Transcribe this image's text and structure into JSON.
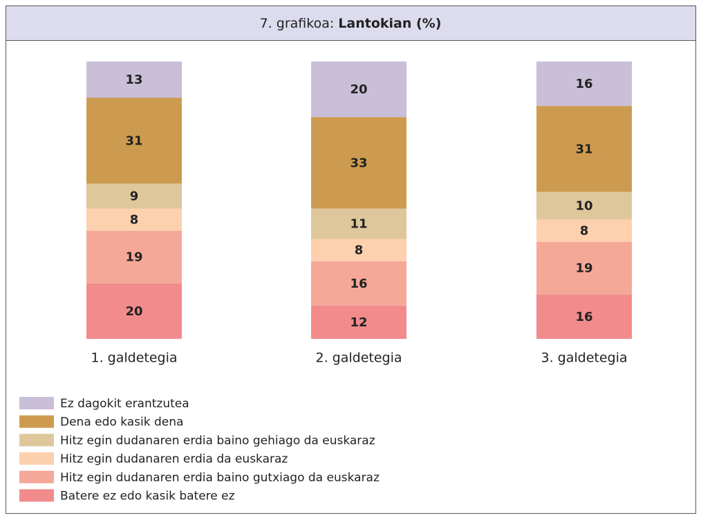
{
  "chart_data": {
    "type": "stacked_bar",
    "title": {
      "prefix": "7. grafikoa:",
      "main": "Lantokian (%)"
    },
    "categories": [
      "1. galdetegia",
      "2. galdetegia",
      "3. galdetegia"
    ],
    "series": [
      {
        "name": "Ez dagokit erantzutea",
        "color": "#c9bfd8",
        "values": [
          13,
          20,
          16
        ]
      },
      {
        "name": "Dena edo kasik dena",
        "color": "#cd9b50",
        "values": [
          31,
          33,
          31
        ]
      },
      {
        "name": "Hitz egin dudanaren erdia baino gehiago da euskaraz",
        "color": "#dfc79c",
        "values": [
          9,
          11,
          10
        ]
      },
      {
        "name": "Hitz egin dudanaren erdia da euskaraz",
        "color": "#fdd0ae",
        "values": [
          8,
          8,
          8
        ]
      },
      {
        "name": "Hitz egin dudanaren erdia baino gutxiago da euskaraz",
        "color": "#f5a898",
        "values": [
          19,
          16,
          19
        ]
      },
      {
        "name": "Batere ez edo kasik batere ez",
        "color": "#f28b8b",
        "values": [
          20,
          12,
          16
        ]
      }
    ]
  }
}
